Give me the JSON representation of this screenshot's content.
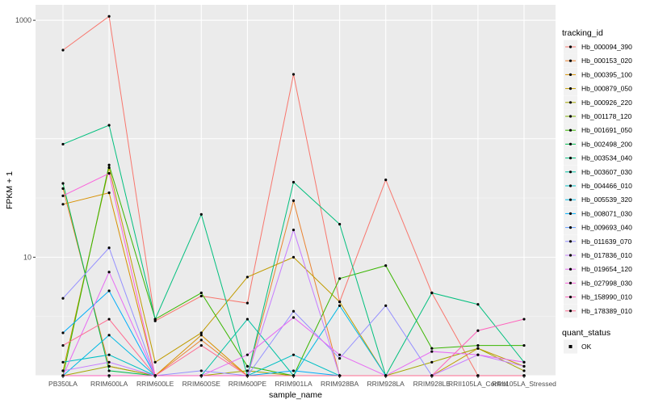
{
  "chart_data": {
    "type": "line",
    "xlabel": "sample_name",
    "ylabel": "FPKM + 1",
    "y_scale": "log10",
    "ylim": [
      1,
      1350
    ],
    "y_ticks": [
      {
        "value": 10,
        "label": "10"
      },
      {
        "value": 1000,
        "label": "1000"
      }
    ],
    "grid": true,
    "legend_position": "right",
    "categories": [
      "PB350LA",
      "RRIM600LA",
      "RRIM600LE",
      "RRIM600SE",
      "RRIM600PE",
      "RRIM901LA",
      "RRIM928BA",
      "RRIM928LA",
      "RRIM928LE",
      "RRII105LA_Control",
      "RRII105LA_Stressed"
    ],
    "series": [
      {
        "name": "Hb_000094_390",
        "color": "#F8766D",
        "values": [
          560,
          1080,
          2.9,
          4.7,
          4.1,
          350,
          4.2,
          45,
          5.0,
          1.0,
          1.0
        ]
      },
      {
        "name": "Hb_000153_020",
        "color": "#EA8331",
        "values": [
          38,
          1.2,
          1.0,
          2.0,
          1.0,
          30,
          1.0,
          1.0,
          1.0,
          1.0,
          1.0
        ]
      },
      {
        "name": "Hb_000395_100",
        "color": "#D89000",
        "values": [
          28,
          35,
          1.0,
          2.2,
          1.0,
          1.0,
          1.0,
          1.0,
          1.0,
          1.0,
          1.0
        ]
      },
      {
        "name": "Hb_000879_050",
        "color": "#C09B00",
        "values": [
          1.1,
          57,
          1.3,
          2.3,
          6.8,
          10,
          4.2,
          1.0,
          1.0,
          1.7,
          1.2
        ]
      },
      {
        "name": "Hb_000926_220",
        "color": "#A3A500",
        "values": [
          1.0,
          1.2,
          1.0,
          1.0,
          1.1,
          1.0,
          1.0,
          1.0,
          1.3,
          1.7,
          1.1
        ]
      },
      {
        "name": "Hb_001178_120",
        "color": "#7CAE00",
        "values": [
          1.0,
          1.0,
          1.0,
          1.0,
          1.0,
          1.0,
          1.0,
          1.0,
          1.0,
          1.0,
          1.0
        ]
      },
      {
        "name": "Hb_001691_050",
        "color": "#39B600",
        "values": [
          1.0,
          60,
          3.0,
          5.0,
          1.2,
          1.0,
          6.6,
          8.5,
          1.7,
          1.8,
          1.8
        ]
      },
      {
        "name": "Hb_002498_200",
        "color": "#00BB4E",
        "values": [
          42,
          1.1,
          1.0,
          1.0,
          1.0,
          1.0,
          1.0,
          1.0,
          1.0,
          1.0,
          1.0
        ]
      },
      {
        "name": "Hb_003534_040",
        "color": "#00BF7D",
        "values": [
          90,
          130,
          3.0,
          23,
          1.0,
          43,
          19,
          1.0,
          5.0,
          4.0,
          1.3
        ]
      },
      {
        "name": "Hb_003607_030",
        "color": "#00C1A3",
        "values": [
          1.0,
          1.0,
          1.0,
          1.0,
          3.0,
          1.0,
          1.0,
          1.0,
          1.0,
          1.0,
          1.0
        ]
      },
      {
        "name": "Hb_004466_010",
        "color": "#00BFC4",
        "values": [
          1.3,
          1.5,
          1.0,
          1.0,
          1.0,
          1.5,
          1.0,
          1.0,
          1.0,
          1.0,
          1.0
        ]
      },
      {
        "name": "Hb_005539_320",
        "color": "#00B9E3",
        "values": [
          1.0,
          2.2,
          1.0,
          1.0,
          1.0,
          1.0,
          3.9,
          1.0,
          1.0,
          1.0,
          1.0
        ]
      },
      {
        "name": "Hb_008071_030",
        "color": "#00ADFA",
        "values": [
          2.3,
          5.2,
          1.0,
          1.0,
          1.0,
          1.1,
          1.0,
          1.0,
          1.0,
          1.0,
          1.0
        ]
      },
      {
        "name": "Hb_009693_040",
        "color": "#619CFF",
        "values": [
          1.0,
          1.0,
          1.0,
          1.0,
          1.0,
          1.0,
          1.0,
          1.0,
          1.0,
          1.0,
          1.0
        ]
      },
      {
        "name": "Hb_011639_070",
        "color": "#9590FF",
        "values": [
          4.5,
          12,
          1.0,
          1.1,
          1.0,
          3.5,
          1.4,
          3.9,
          1.0,
          1.0,
          1.0
        ]
      },
      {
        "name": "Hb_017836_010",
        "color": "#C77CFF",
        "values": [
          1.1,
          1.3,
          1.0,
          1.0,
          1.0,
          17,
          1.0,
          1.0,
          1.0,
          1.5,
          1.2
        ]
      },
      {
        "name": "Hb_019654_120",
        "color": "#E76BF3",
        "values": [
          1.0,
          7.5,
          1.0,
          1.0,
          1.5,
          3.1,
          1.5,
          1.0,
          1.6,
          1.5,
          1.3
        ]
      },
      {
        "name": "Hb_027998_030",
        "color": "#FA62DB",
        "values": [
          33,
          51,
          1.0,
          1.0,
          1.0,
          1.0,
          1.0,
          1.0,
          1.0,
          1.0,
          1.0
        ]
      },
      {
        "name": "Hb_158990_010",
        "color": "#FF62BC",
        "values": [
          1.0,
          1.0,
          1.0,
          1.0,
          1.0,
          1.0,
          1.0,
          1.0,
          1.0,
          2.4,
          3.0
        ]
      },
      {
        "name": "Hb_178389_010",
        "color": "#FF6C91",
        "values": [
          1.8,
          3.0,
          1.0,
          1.8,
          1.0,
          1.0,
          1.0,
          1.0,
          1.0,
          1.0,
          1.0
        ]
      }
    ],
    "legends": [
      {
        "title": "tracking_id"
      },
      {
        "title": "quant_status",
        "entries": [
          "OK"
        ]
      }
    ]
  }
}
